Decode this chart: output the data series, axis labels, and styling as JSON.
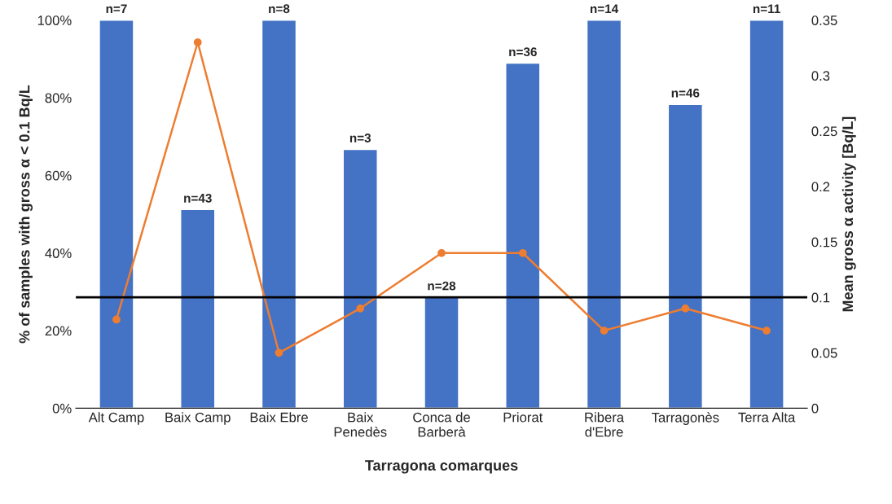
{
  "chart_data": {
    "type": "bar",
    "categories": [
      "Alt Camp",
      "Baix Camp",
      "Baix Ebre",
      "Baix\nPenedès",
      "Conca de\nBarberà",
      "Priorat",
      "Ribera\nd'Ebre",
      "Tarragonès",
      "Terra Alta"
    ],
    "series": [
      {
        "color": "#4472c4",
        "values": [
          100,
          51.2,
          100,
          66.7,
          28.6,
          88.9,
          100,
          78.3,
          100
        ]
      },
      {
        "type": "line",
        "axis": "y2",
        "color": "#ed7d31",
        "marker": "circle",
        "values": [
          0.08,
          0.33,
          0.05,
          0.09,
          0.14,
          0.14,
          0.07,
          0.09,
          0.07
        ]
      }
    ],
    "annotations": [
      {
        "text": "n=7",
        "x": "Alt Camp",
        "y": 100
      },
      {
        "text": "n=43",
        "x": "Baix Camp",
        "y": 51.2
      },
      {
        "text": "n=8",
        "x": "Baix Ebre",
        "y": 100
      },
      {
        "text": "n=3",
        "x": "Baix\nPenedès",
        "y": 66.7
      },
      {
        "text": "n=28",
        "x": "Conca de\nBarberà",
        "y": 28.6
      },
      {
        "text": "n=36",
        "x": "Priorat",
        "y": 88.9
      },
      {
        "text": "n=14",
        "x": "Ribera\nd'Ebre",
        "y": 100
      },
      {
        "text": "n=46",
        "x": "Tarragonès",
        "y": 78.3
      },
      {
        "text": "n=11",
        "x": "Terra Alta",
        "y": 100
      }
    ],
    "xlabel": "Tarragona comarques",
    "ylabel": "% of samples with gross α < 0.1 Bq/L",
    "y2label": "Mean gross α activity [Bq/L]",
    "ylim": [
      0,
      100
    ],
    "yticks": [
      {
        "value": 0,
        "label": "0%"
      },
      {
        "value": 20,
        "label": "20%"
      },
      {
        "value": 40,
        "label": "40%"
      },
      {
        "value": 60,
        "label": "60%"
      },
      {
        "value": 80,
        "label": "80%"
      },
      {
        "value": 100,
        "label": "100%"
      }
    ],
    "y2lim": [
      0,
      0.35
    ],
    "y2ticks": [
      0,
      0.05,
      0.1,
      0.15,
      0.2,
      0.25,
      0.3,
      0.35
    ],
    "ref_lines": [
      {
        "axis": "y2",
        "value": 0.1,
        "color": "#000000",
        "line_style": "solid"
      }
    ],
    "grid": false,
    "legend": false
  }
}
